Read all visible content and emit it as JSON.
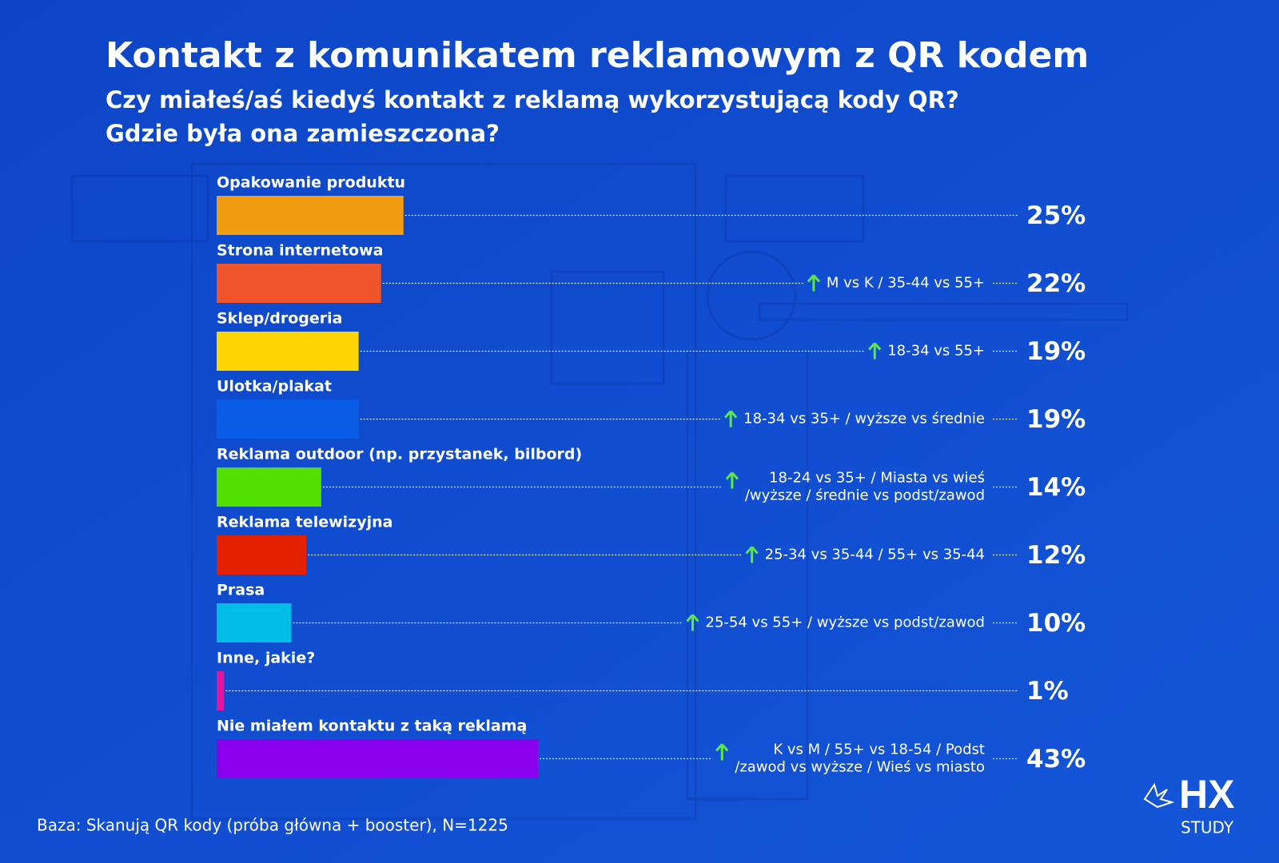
{
  "chart_data": {
    "type": "bar",
    "orientation": "horizontal",
    "title": "Kontakt z komunikatem reklamowym z QR kodem",
    "subtitle": [
      "Czy miałeś/aś kiedyś kontakt z reklamą wykorzystującą kody QR?",
      "Gdzie była ona zamieszczona?"
    ],
    "categories": [
      "Opakowanie produktu",
      "Strona internetowa",
      "Sklep/drogeria",
      "Ulotka/plakat",
      "Reklama outdoor (np. przystanek, bilbord)",
      "Reklama telewizyjna",
      "Prasa",
      "Inne, jakie?",
      "Nie miałem kontaktu z taką reklamą"
    ],
    "values": [
      25,
      22,
      19,
      19,
      14,
      12,
      10,
      1,
      43
    ],
    "value_labels": [
      "25%",
      "22%",
      "19%",
      "19%",
      "14%",
      "12%",
      "10%",
      "1%",
      "43%"
    ],
    "colors": [
      "#f29c11",
      "#f0542a",
      "#ffd500",
      "#0a5ce6",
      "#52e000",
      "#e32000",
      "#00bde6",
      "#e612a0",
      "#8a00ee"
    ],
    "notes": [
      null,
      [
        "M vs K / 35-44 vs 55+"
      ],
      [
        "18-34 vs 55+"
      ],
      [
        "18-34 vs 35+ / wyższe vs średnie"
      ],
      [
        "18-24 vs 35+ / Miasta vs wieś",
        "/wyższe / średnie vs podst/zawod"
      ],
      [
        "25-34 vs 35-44 / 55+ vs 35-44"
      ],
      [
        "25-54 vs 55+ / wyższe vs podst/zawod"
      ],
      null,
      [
        "K vs M / 55+ vs 18-54 / Podst",
        "/zawod vs wyższe / Wieś vs miasto"
      ]
    ],
    "source": "Baza: Skanują QR kody (próba główna + booster), N=1225"
  },
  "logo": {
    "mark": "HX",
    "name": "STUDY"
  }
}
